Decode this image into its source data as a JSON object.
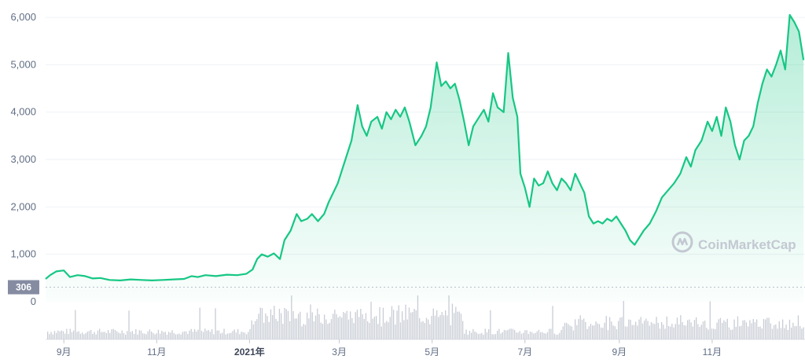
{
  "watermark": "CoinMarketCap",
  "colors": {
    "line": "#16c784",
    "area_top": "#16c784",
    "volume": "#c8ccd4",
    "grid": "#eff2f5",
    "ref_label_bg": "#858ca2"
  },
  "chart_data": {
    "type": "area",
    "title": "",
    "xlabel": "",
    "ylabel": "",
    "ylim": [
      0,
      6200
    ],
    "y_ticks": [
      "0",
      "1,000",
      "2,000",
      "3,000",
      "4,000",
      "5,000",
      "6,000"
    ],
    "y_tick_values": [
      0,
      1000,
      2000,
      3000,
      4000,
      5000,
      6000
    ],
    "reference_value": 306,
    "reference_label": "306",
    "x_ticks": [
      {
        "label": "9月",
        "date": "2020-09-01",
        "bold": false
      },
      {
        "label": "11月",
        "date": "2020-11-01",
        "bold": false
      },
      {
        "label": "2021年",
        "date": "2021-01-01",
        "bold": true
      },
      {
        "label": "3月",
        "date": "2021-03-01",
        "bold": false
      },
      {
        "label": "5月",
        "date": "2021-05-01",
        "bold": false
      },
      {
        "label": "7月",
        "date": "2021-07-01",
        "bold": false
      },
      {
        "label": "9月",
        "date": "2021-09-01",
        "bold": false
      },
      {
        "label": "11月",
        "date": "2021-11-01",
        "bold": false
      }
    ],
    "x_range": [
      "2020-08-20",
      "2022-01-01"
    ],
    "grid": true,
    "series": [
      {
        "values": [
          [
            "2020-08-20",
            480
          ],
          [
            "2020-08-23",
            560
          ],
          [
            "2020-08-27",
            640
          ],
          [
            "2020-09-01",
            660
          ],
          [
            "2020-09-05",
            520
          ],
          [
            "2020-09-10",
            560
          ],
          [
            "2020-09-15",
            540
          ],
          [
            "2020-09-20",
            490
          ],
          [
            "2020-09-25",
            500
          ],
          [
            "2020-10-01",
            460
          ],
          [
            "2020-10-08",
            450
          ],
          [
            "2020-10-15",
            470
          ],
          [
            "2020-10-22",
            460
          ],
          [
            "2020-10-29",
            450
          ],
          [
            "2020-11-05",
            460
          ],
          [
            "2020-11-12",
            470
          ],
          [
            "2020-11-19",
            480
          ],
          [
            "2020-11-24",
            540
          ],
          [
            "2020-11-28",
            520
          ],
          [
            "2020-12-03",
            560
          ],
          [
            "2020-12-10",
            540
          ],
          [
            "2020-12-17",
            570
          ],
          [
            "2020-12-24",
            560
          ],
          [
            "2020-12-30",
            590
          ],
          [
            "2021-01-03",
            680
          ],
          [
            "2021-01-06",
            900
          ],
          [
            "2021-01-09",
            1000
          ],
          [
            "2021-01-13",
            950
          ],
          [
            "2021-01-17",
            1020
          ],
          [
            "2021-01-21",
            900
          ],
          [
            "2021-01-24",
            1300
          ],
          [
            "2021-01-28",
            1500
          ],
          [
            "2021-02-01",
            1850
          ],
          [
            "2021-02-04",
            1700
          ],
          [
            "2021-02-08",
            1750
          ],
          [
            "2021-02-11",
            1850
          ],
          [
            "2021-02-15",
            1700
          ],
          [
            "2021-02-19",
            1850
          ],
          [
            "2021-02-22",
            2100
          ],
          [
            "2021-02-25",
            2300
          ],
          [
            "2021-02-28",
            2500
          ],
          [
            "2021-03-03",
            2800
          ],
          [
            "2021-03-06",
            3100
          ],
          [
            "2021-03-09",
            3400
          ],
          [
            "2021-03-13",
            4150
          ],
          [
            "2021-03-16",
            3700
          ],
          [
            "2021-03-19",
            3500
          ],
          [
            "2021-03-22",
            3800
          ],
          [
            "2021-03-26",
            3900
          ],
          [
            "2021-03-29",
            3650
          ],
          [
            "2021-04-01",
            4000
          ],
          [
            "2021-04-04",
            3850
          ],
          [
            "2021-04-07",
            4050
          ],
          [
            "2021-04-10",
            3900
          ],
          [
            "2021-04-13",
            4100
          ],
          [
            "2021-04-16",
            3800
          ],
          [
            "2021-04-20",
            3300
          ],
          [
            "2021-04-24",
            3500
          ],
          [
            "2021-04-27",
            3700
          ],
          [
            "2021-04-30",
            4100
          ],
          [
            "2021-05-04",
            5050
          ],
          [
            "2021-05-07",
            4550
          ],
          [
            "2021-05-10",
            4650
          ],
          [
            "2021-05-13",
            4500
          ],
          [
            "2021-05-16",
            4600
          ],
          [
            "2021-05-19",
            4250
          ],
          [
            "2021-05-22",
            3800
          ],
          [
            "2021-05-25",
            3300
          ],
          [
            "2021-05-28",
            3700
          ],
          [
            "2021-06-01",
            3900
          ],
          [
            "2021-06-04",
            4050
          ],
          [
            "2021-06-07",
            3800
          ],
          [
            "2021-06-10",
            4400
          ],
          [
            "2021-06-13",
            4100
          ],
          [
            "2021-06-17",
            4000
          ],
          [
            "2021-06-20",
            5250
          ],
          [
            "2021-06-23",
            4300
          ],
          [
            "2021-06-26",
            3900
          ],
          [
            "2021-06-28",
            2700
          ],
          [
            "2021-07-01",
            2400
          ],
          [
            "2021-07-04",
            2000
          ],
          [
            "2021-07-07",
            2600
          ],
          [
            "2021-07-10",
            2450
          ],
          [
            "2021-07-13",
            2500
          ],
          [
            "2021-07-16",
            2750
          ],
          [
            "2021-07-19",
            2500
          ],
          [
            "2021-07-22",
            2350
          ],
          [
            "2021-07-25",
            2600
          ],
          [
            "2021-07-28",
            2500
          ],
          [
            "2021-07-31",
            2350
          ],
          [
            "2021-08-03",
            2700
          ],
          [
            "2021-08-06",
            2500
          ],
          [
            "2021-08-09",
            2300
          ],
          [
            "2021-08-12",
            1800
          ],
          [
            "2021-08-15",
            1650
          ],
          [
            "2021-08-18",
            1700
          ],
          [
            "2021-08-21",
            1650
          ],
          [
            "2021-08-24",
            1750
          ],
          [
            "2021-08-27",
            1700
          ],
          [
            "2021-08-30",
            1800
          ],
          [
            "2021-09-02",
            1650
          ],
          [
            "2021-09-05",
            1500
          ],
          [
            "2021-09-08",
            1300
          ],
          [
            "2021-09-11",
            1200
          ],
          [
            "2021-09-14",
            1350
          ],
          [
            "2021-09-17",
            1500
          ],
          [
            "2021-09-21",
            1650
          ],
          [
            "2021-09-25",
            1900
          ],
          [
            "2021-09-29",
            2200
          ],
          [
            "2021-10-03",
            2350
          ],
          [
            "2021-10-07",
            2500
          ],
          [
            "2021-10-11",
            2700
          ],
          [
            "2021-10-15",
            3050
          ],
          [
            "2021-10-18",
            2850
          ],
          [
            "2021-10-21",
            3200
          ],
          [
            "2021-10-25",
            3400
          ],
          [
            "2021-10-29",
            3800
          ],
          [
            "2021-11-01",
            3600
          ],
          [
            "2021-11-04",
            3900
          ],
          [
            "2021-11-07",
            3500
          ],
          [
            "2021-11-10",
            4100
          ],
          [
            "2021-11-13",
            3800
          ],
          [
            "2021-11-16",
            3300
          ],
          [
            "2021-11-19",
            3000
          ],
          [
            "2021-11-22",
            3400
          ],
          [
            "2021-11-25",
            3500
          ],
          [
            "2021-11-28",
            3700
          ],
          [
            "2021-12-01",
            4200
          ],
          [
            "2021-12-04",
            4600
          ],
          [
            "2021-12-07",
            4900
          ],
          [
            "2021-12-10",
            4750
          ],
          [
            "2021-12-13",
            5000
          ],
          [
            "2021-12-16",
            5300
          ],
          [
            "2021-12-19",
            4900
          ],
          [
            "2021-12-22",
            6050
          ],
          [
            "2021-12-25",
            5900
          ],
          [
            "2021-12-28",
            5700
          ],
          [
            "2021-12-31",
            5100
          ]
        ]
      }
    ]
  }
}
